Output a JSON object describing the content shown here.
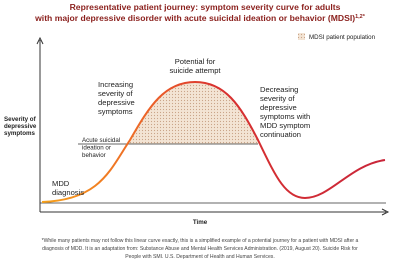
{
  "header": {
    "title_lines": [
      "Representative patient journey: symptom severity curve for adults",
      "with major depressive disorder with acute suicidal ideation or behavior (MDSI)"
    ],
    "title_sup": "1,2*"
  },
  "legend": {
    "label": "MDSI patient population"
  },
  "axes": {
    "y_label": [
      "Severity of",
      "depressive",
      "symptoms"
    ],
    "x_label": "Time"
  },
  "annotations": {
    "peak": [
      "Potential for",
      "suicide attempt"
    ],
    "increasing": [
      "Increasing",
      "severity of",
      "depressive",
      "symptoms"
    ],
    "threshold": [
      "Acute suicidal",
      "ideation or",
      "behavior"
    ],
    "decreasing": [
      "Decreasing",
      "severity of",
      "depressive",
      "symptoms with",
      "MDD symptom",
      "continuation"
    ],
    "start": [
      "MDD",
      "diagnosis"
    ]
  },
  "footnote": [
    "*While many patients may not follow this linear curve exactly, this is a simplified example of a potential journey for a patient with MDSI after a",
    "diagnosis of MDD. It is an adaptation from: Substance Abuse and Mental Health Services Administration. (2019, August 20). Suicide Risk for",
    "People with SMI. U.S. Department of Health and Human Services."
  ]
}
